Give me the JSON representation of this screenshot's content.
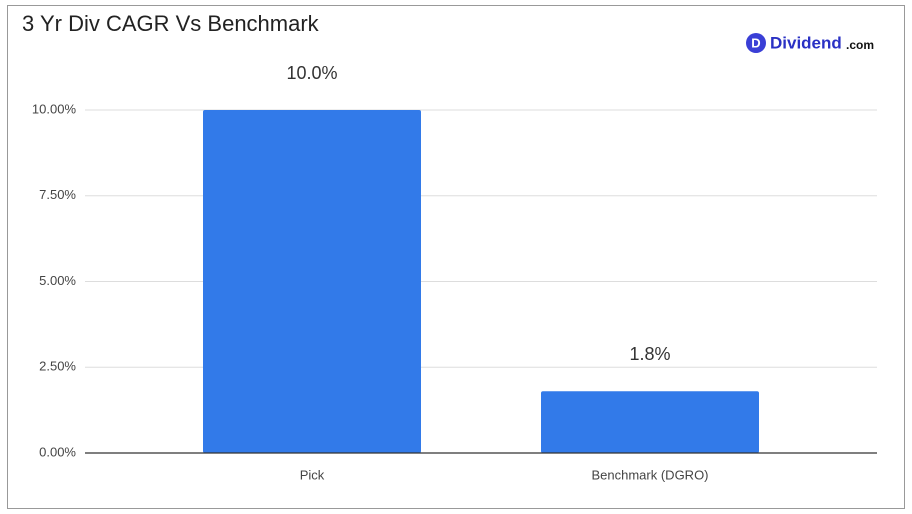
{
  "chart_data": {
    "type": "bar",
    "title": "3 Yr Div CAGR Vs Benchmark",
    "categories": [
      "Pick",
      "Benchmark (DGRO)"
    ],
    "values": [
      10.0,
      1.8
    ],
    "value_labels": [
      "10.0%",
      "1.8%"
    ],
    "color": "#327ae9",
    "ylim": [
      0,
      10
    ],
    "yticks": [
      {
        "value": 0,
        "label": "0.00%"
      },
      {
        "value": 2.5,
        "label": "2.50%"
      },
      {
        "value": 5,
        "label": "5.00%"
      },
      {
        "value": 7.5,
        "label": "7.50%"
      },
      {
        "value": 10,
        "label": "10.00%"
      }
    ],
    "grid": true
  },
  "logo": {
    "icon": "D",
    "name": "Dividend",
    "suffix": ".com"
  }
}
